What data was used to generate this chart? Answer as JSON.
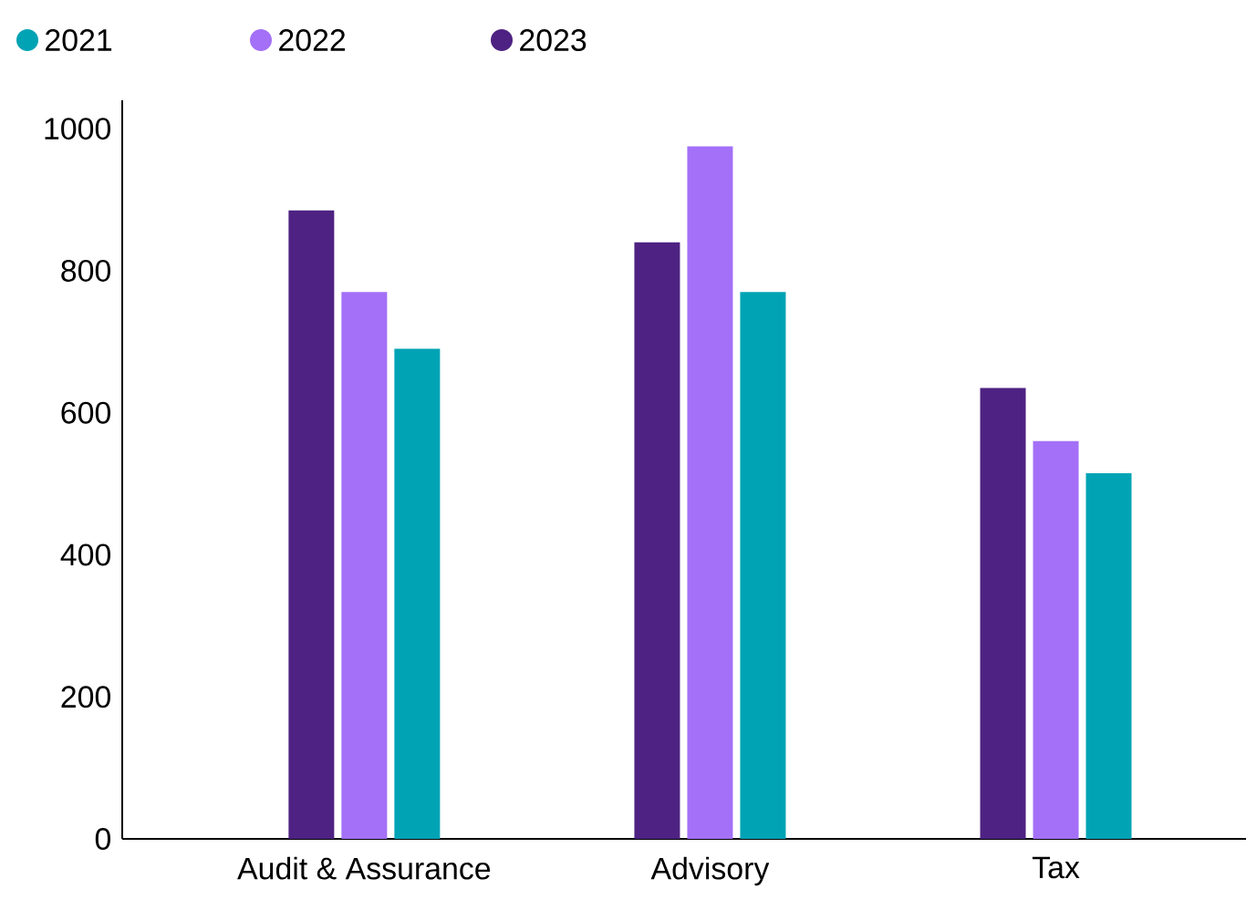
{
  "chart_data": {
    "type": "bar",
    "categories": [
      "Audit & Assurance",
      "Advisory",
      "Tax"
    ],
    "series": [
      {
        "name": "2021",
        "color": "#00a3b4",
        "values": [
          690,
          770,
          515
        ]
      },
      {
        "name": "2022",
        "color": "#a370f7",
        "values": [
          770,
          975,
          560
        ]
      },
      {
        "name": "2023",
        "color": "#4e2282",
        "values": [
          885,
          840,
          635
        ]
      }
    ],
    "ylim": [
      0,
      1040
    ],
    "yticks": [
      0,
      200,
      400,
      600,
      800,
      1000
    ],
    "grid": false,
    "legend": "top left"
  }
}
